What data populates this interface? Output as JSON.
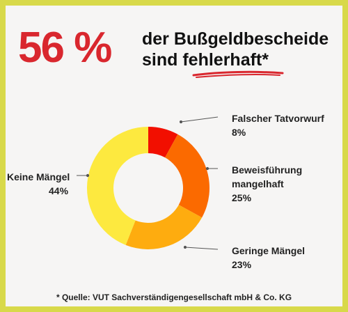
{
  "headline": {
    "big": "56 %",
    "line1": "der Bußgeldbescheide",
    "line2_pre": "sind ",
    "line2_em": "fehlerhaft",
    "line2_post": "*"
  },
  "footer": "* Quelle: VUT Sachverständigengesellschaft mbH & Co. KG",
  "colors": {
    "accent": "#d9272e",
    "frame": "#d8d94a"
  },
  "chart_data": {
    "type": "pie",
    "donut": true,
    "slices": [
      {
        "label": "Falscher Tatvorwurf",
        "value_label": "8%",
        "value": 8,
        "color": "#f20f00"
      },
      {
        "label": "Beweisführung\nmangelhaft",
        "value_label": "25%",
        "value": 25,
        "color": "#fb6a00"
      },
      {
        "label": "Geringe Mängel",
        "value_label": "23%",
        "value": 23,
        "color": "#feac0f"
      },
      {
        "label": "Keine Mängel",
        "value_label": "44%",
        "value": 44,
        "color": "#fde93f"
      }
    ]
  }
}
